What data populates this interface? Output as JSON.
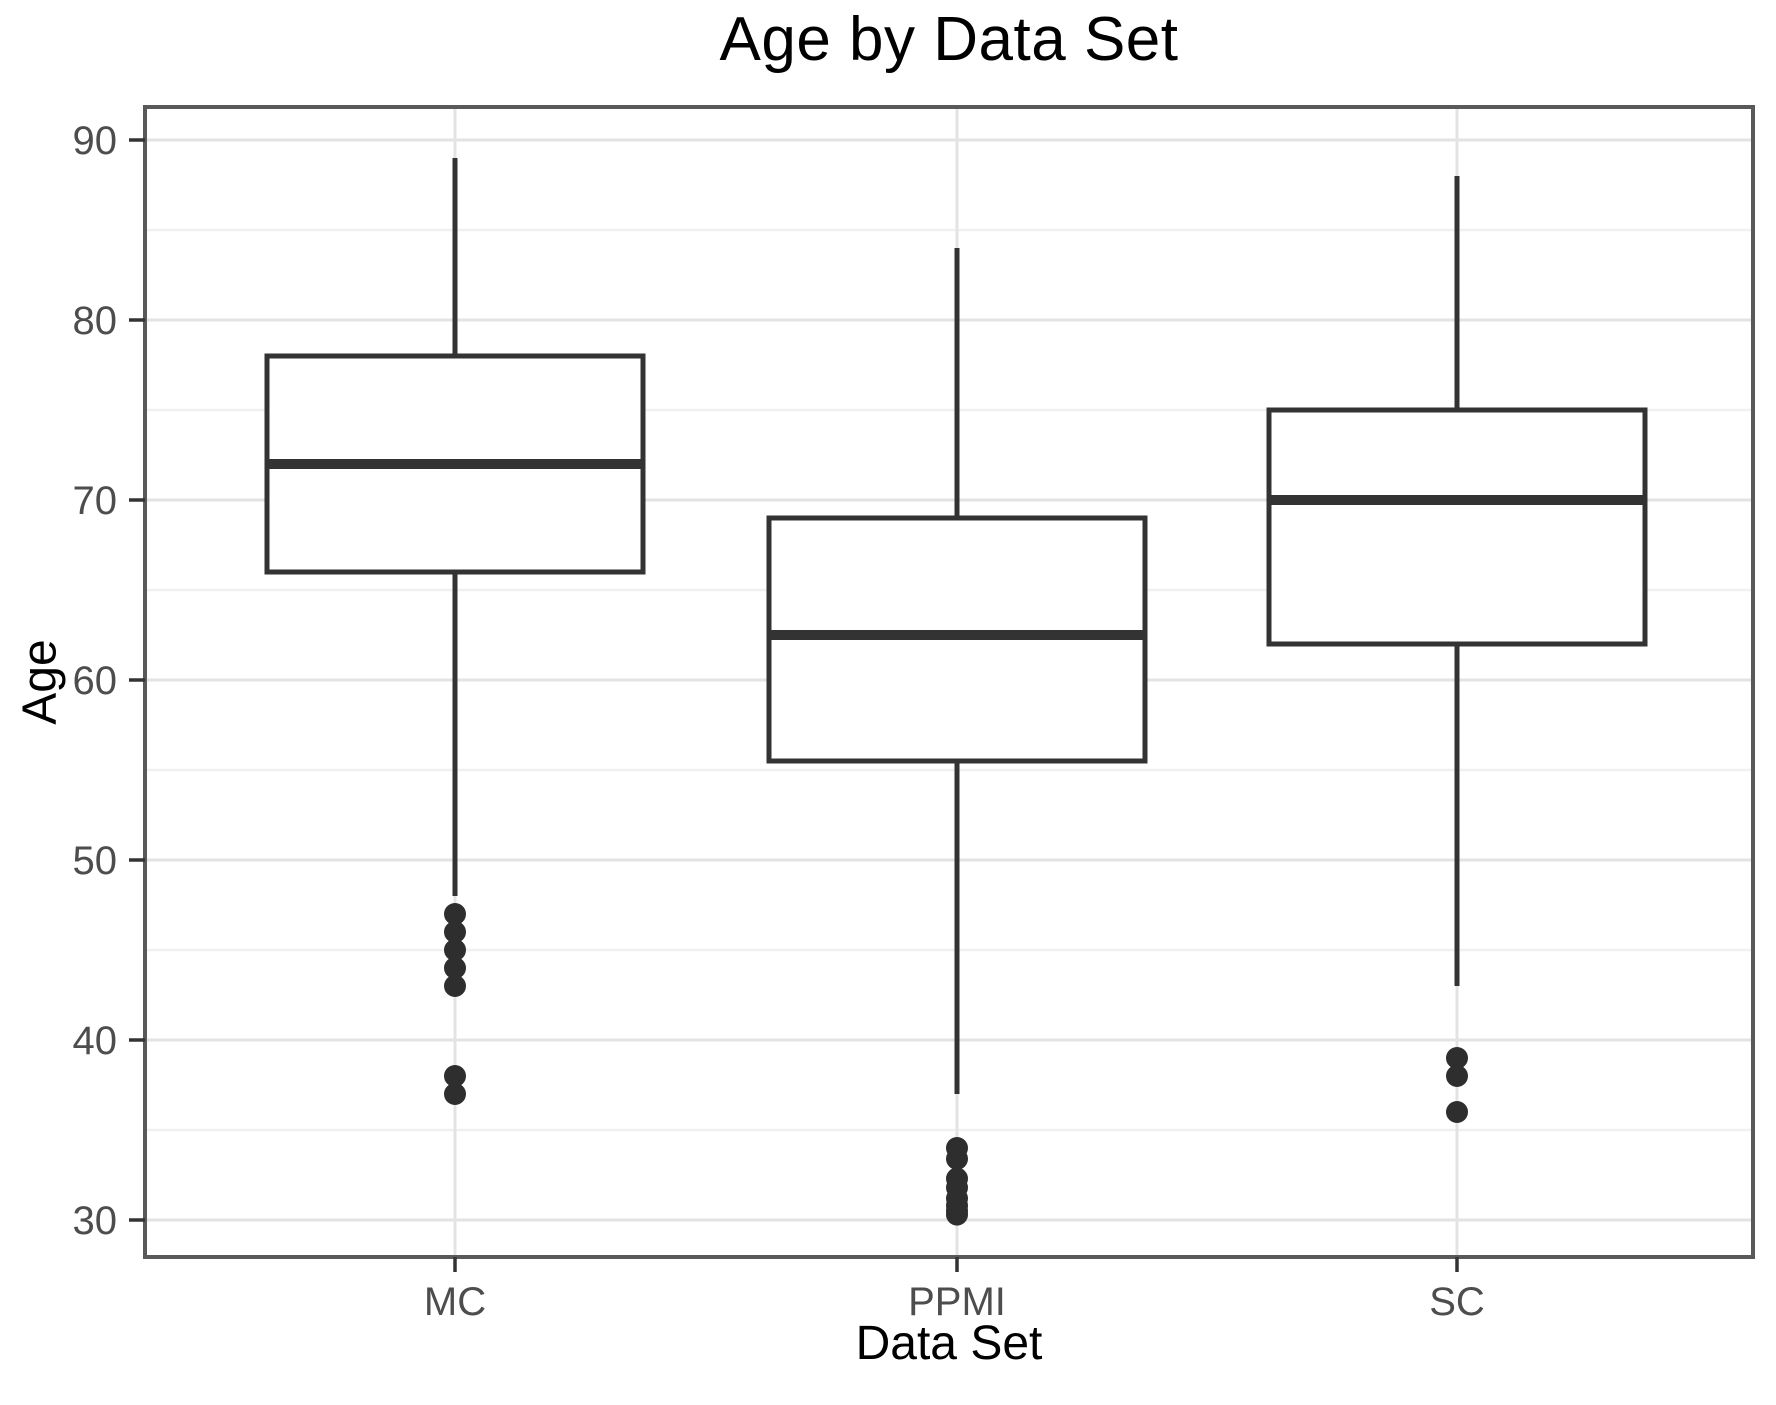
{
  "figure": {
    "title": "Age by Data Set"
  },
  "chart_data": {
    "type": "boxplot",
    "title": "Age by Data Set",
    "xlabel": "Data Set",
    "ylabel": "Age",
    "categories": [
      "MC",
      "PPMI",
      "SC"
    ],
    "y_ticks": [
      30,
      40,
      50,
      60,
      70,
      80,
      90
    ],
    "y_minor_gridlines": [
      35,
      45,
      55,
      65,
      75,
      85
    ],
    "ylim": [
      28,
      92
    ],
    "grid": true,
    "legend": "none",
    "series": [
      {
        "name": "MC",
        "whisker_low": 48,
        "q1": 66,
        "median": 72,
        "q3": 78,
        "whisker_high": 89,
        "outliers": [
          47,
          46,
          45,
          44,
          43,
          38,
          37
        ]
      },
      {
        "name": "PPMI",
        "whisker_low": 37,
        "q1": 55.5,
        "median": 62.5,
        "q3": 69,
        "whisker_high": 84,
        "outliers": [
          34,
          33.4,
          32.3,
          31.8,
          31.2,
          30.8,
          30.5,
          30.3
        ]
      },
      {
        "name": "SC",
        "whisker_low": 43,
        "q1": 62,
        "median": 70,
        "q3": 75,
        "whisker_high": 88,
        "outliers": [
          39,
          38,
          36
        ]
      }
    ],
    "colors": {
      "background": "#ffffff",
      "panel_border": "#595959",
      "grid_major": "#e3e3e3",
      "grid_minor": "#f0f0f0",
      "box_stroke": "#333333",
      "outlier_fill": "#2e2e2e",
      "tick_mark": "#333333",
      "tick_label": "#4d4d4d",
      "title_color": "#000000"
    }
  }
}
